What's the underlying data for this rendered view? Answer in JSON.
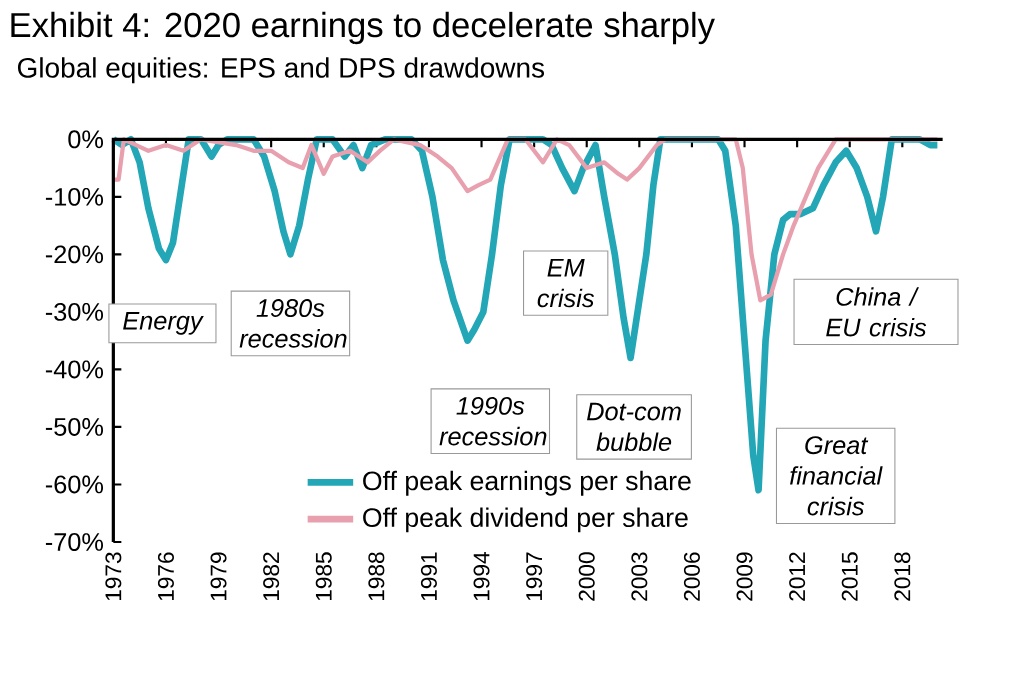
{
  "chart_data": {
    "type": "line",
    "title": "Exhibit 4: 2020 earnings to decelerate sharply",
    "subtitle": "Global equities: EPS and DPS drawdowns",
    "xlim": [
      1973,
      2020.3
    ],
    "xticks": [
      1973,
      1976,
      1979,
      1982,
      1985,
      1988,
      1991,
      1994,
      1997,
      2000,
      2003,
      2006,
      2009,
      2012,
      2015,
      2018
    ],
    "ylim": [
      -70,
      0
    ],
    "yticks": [
      {
        "value": 0,
        "label": "0%"
      },
      {
        "value": -10,
        "label": "-10%"
      },
      {
        "value": -20,
        "label": "-20%"
      },
      {
        "value": -30,
        "label": "-30%"
      },
      {
        "value": -40,
        "label": "-40%"
      },
      {
        "value": -50,
        "label": "-50%"
      },
      {
        "value": -60,
        "label": "-60%"
      },
      {
        "value": -70,
        "label": "-70%"
      }
    ],
    "grid": false,
    "legend": "bottom",
    "marker": "none",
    "line_style": "solid",
    "series": [
      {
        "name": "Off peak earnings per share",
        "color": "#23a6b6",
        "x": [
          1973,
          1973.5,
          1974.0,
          1974.5,
          1975.0,
          1975.6,
          1976.0,
          1976.4,
          1976.9,
          1977.3,
          1978.0,
          1978.6,
          1979.0,
          1979.5,
          1981.0,
          1981.6,
          1982.2,
          1982.7,
          1983.1,
          1983.6,
          1984.1,
          1984.6,
          1985.5,
          1986.2,
          1986.7,
          1987.2,
          1987.7,
          1988.5,
          1990.0,
          1990.6,
          1991.2,
          1991.8,
          1992.4,
          1993.2,
          1993.6,
          1994.1,
          1994.6,
          1995.1,
          1995.6,
          1997.5,
          1998.0,
          1998.6,
          1999.3,
          1999.8,
          2000.5,
          2001.0,
          2001.6,
          2002.1,
          2002.5,
          2002.9,
          2003.4,
          2003.8,
          2004.2,
          2007.5,
          2007.9,
          2008.5,
          2009.0,
          2009.5,
          2009.8,
          2010.2,
          2010.7,
          2011.2,
          2011.6,
          2012.2,
          2012.9,
          2013.5,
          2014.2,
          2014.8,
          2015.4,
          2016.0,
          2016.5,
          2016.9,
          2017.4,
          2019.0,
          2019.6,
          2020.0
        ],
        "values": [
          0,
          -1,
          0,
          -4,
          -12,
          -19,
          -21,
          -18,
          -8,
          0,
          0,
          -3,
          -1,
          0,
          0,
          -3,
          -9,
          -16,
          -20,
          -15,
          -7,
          0,
          0,
          -3,
          -1,
          -5,
          -1,
          0,
          0,
          -2,
          -10,
          -21,
          -28,
          -35,
          -33,
          -30,
          -20,
          -8,
          0,
          0,
          -1,
          -5,
          -9,
          -5,
          -1,
          -10,
          -20,
          -31,
          -38,
          -30,
          -20,
          -8,
          0,
          0,
          -2,
          -15,
          -35,
          -55,
          -61,
          -35,
          -20,
          -14,
          -13,
          -13,
          -12,
          -8,
          -4,
          -2,
          -5,
          -10,
          -16,
          -10,
          0,
          0,
          -1,
          -1
        ]
      },
      {
        "name": "Off peak dividend per share",
        "color": "#e8a0ae",
        "x": [
          1973,
          1973.3,
          1973.6,
          1975,
          1976,
          1977,
          1978,
          1980,
          1981,
          1982,
          1983,
          1983.8,
          1984.3,
          1985,
          1985.5,
          1986.5,
          1987.5,
          1988.2,
          1989,
          1990.5,
          1991.5,
          1992.3,
          1993.2,
          1993.8,
          1994.5,
          1995.5,
          1996.5,
          1997.5,
          1998.3,
          1999,
          2000,
          2001,
          2001.8,
          2002.3,
          2003,
          2004,
          2004.5,
          2008.5,
          2008.9,
          2009.4,
          2009.9,
          2010.5,
          2011.2,
          2011.8,
          2012.5,
          2013.2,
          2014.2,
          2020
        ],
        "values": [
          -7,
          -7,
          0,
          -2,
          -1,
          -2,
          0,
          -1,
          -2,
          -2,
          -4,
          -5,
          -1,
          -6,
          -3,
          -2,
          -4,
          -2,
          0,
          -1,
          -3,
          -5,
          -9,
          -8,
          -7,
          0,
          0,
          -4,
          0,
          -1,
          -5,
          -4,
          -6,
          -7,
          -5,
          -1,
          0,
          0,
          -5,
          -20,
          -28,
          -27,
          -20,
          -15,
          -10,
          -5,
          0,
          0
        ]
      }
    ],
    "annotations": [
      {
        "text": "Energy",
        "x": 1976.0,
        "y": -21
      },
      {
        "text": "1980s recession",
        "x": 1983.1,
        "y": -20
      },
      {
        "text": "1990s recession",
        "x": 1993.2,
        "y": -35
      },
      {
        "text": "EM crisis",
        "x": 1999.3,
        "y": -9
      },
      {
        "text": "Dot-com bubble",
        "x": 2002.5,
        "y": -38
      },
      {
        "text": "Great financial crisis",
        "x": 2009.8,
        "y": -61
      },
      {
        "text": "China / EU crisis",
        "x": 2016.5,
        "y": -16
      }
    ]
  }
}
